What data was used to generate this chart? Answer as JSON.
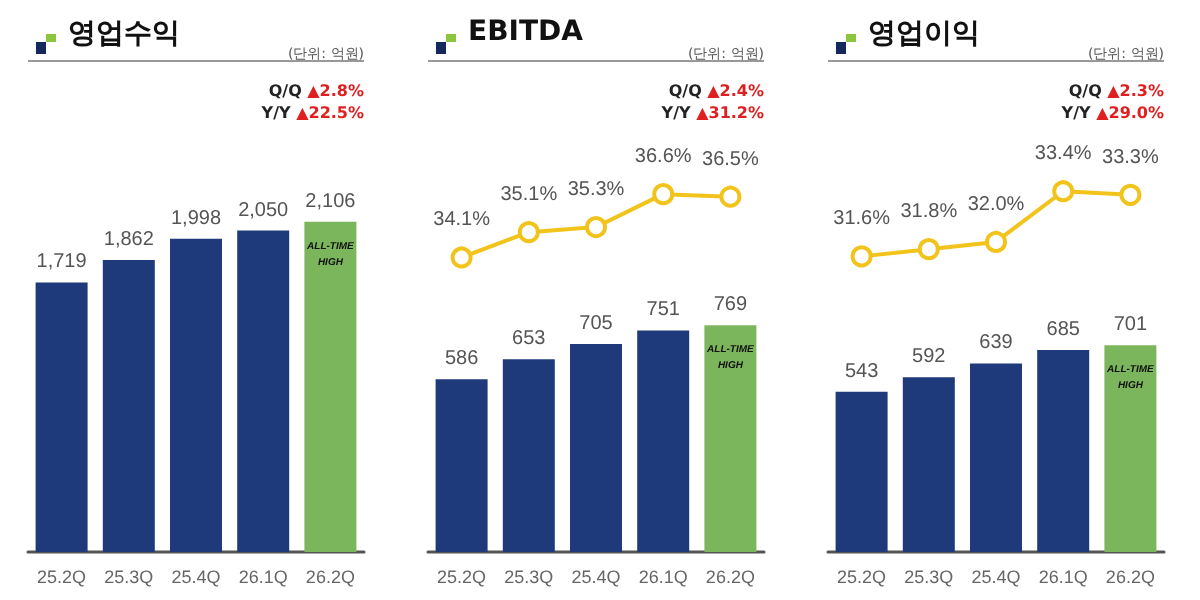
{
  "chart_data": [
    {
      "type": "bar",
      "title": "영업수익",
      "categories": [
        "25.2Q",
        "25.3Q",
        "25.4Q",
        "26.1Q",
        "26.2Q"
      ],
      "tick_labels": "x",
      "grid": false,
      "series": [
        {
          "colors": [
            "#1f3a7a",
            "#1f3a7a",
            "#1f3a7a",
            "#1f3a7a",
            "#7cb65c"
          ],
          "values": [
            1719,
            1862,
            1998,
            2050,
            2106
          ],
          "value_labels": [
            "1,719",
            "1,862",
            "1,998",
            "2,050",
            "2,106"
          ]
        }
      ],
      "annotations": [
        "(단위: 억원)",
        "Q/Q ▲2.8%",
        "Y/Y ▲22.5%",
        {
          "text": "ALL-TIME HIGH",
          "x": "26.2Q",
          "y": 2106
        }
      ]
    },
    {
      "type": "line",
      "title": "EBITDA",
      "categories": [
        "25.2Q",
        "25.3Q",
        "25.4Q",
        "26.1Q",
        "26.2Q"
      ],
      "tick_labels": false,
      "grid": false,
      "marker": "circle",
      "series": [
        {
          "color": "#f2c31b",
          "values": [
            34.1,
            35.1,
            35.3,
            36.6,
            36.5
          ],
          "value_labels": [
            "34.1%",
            "35.1%",
            "35.3%",
            "36.6%",
            "36.5%"
          ]
        }
      ],
      "annotations": [
        "(단위: 억원)",
        "Q/Q ▲2.4%",
        "Y/Y ▲31.2%"
      ]
    },
    {
      "type": "bar",
      "categories": [
        "25.2Q",
        "25.3Q",
        "25.4Q",
        "26.1Q",
        "26.2Q"
      ],
      "tick_labels": "x",
      "grid": false,
      "series": [
        {
          "colors": [
            "#1f3a7a",
            "#1f3a7a",
            "#1f3a7a",
            "#1f3a7a",
            "#7cb65c"
          ],
          "values": [
            586,
            653,
            705,
            751,
            769
          ],
          "value_labels": [
            "586",
            "653",
            "705",
            "751",
            "769"
          ]
        }
      ],
      "annotations": [
        {
          "text": "ALL-TIME HIGH",
          "x": "26.2Q",
          "y": 769
        }
      ]
    },
    {
      "type": "line",
      "title": "영업이익",
      "categories": [
        "25.2Q",
        "25.3Q",
        "25.4Q",
        "26.1Q",
        "26.2Q"
      ],
      "tick_labels": false,
      "grid": false,
      "marker": "circle",
      "series": [
        {
          "color": "#f2c31b",
          "values": [
            31.6,
            31.8,
            32.0,
            33.4,
            33.3
          ],
          "value_labels": [
            "31.6%",
            "31.8%",
            "32.0%",
            "33.4%",
            "33.3%"
          ]
        }
      ],
      "annotations": [
        "(단위: 억원)",
        "Q/Q ▲2.3%",
        "Y/Y ▲29.0%"
      ]
    },
    {
      "type": "bar",
      "categories": [
        "25.2Q",
        "25.3Q",
        "25.4Q",
        "26.1Q",
        "26.2Q"
      ],
      "tick_labels": "x",
      "grid": false,
      "series": [
        {
          "colors": [
            "#1f3a7a",
            "#1f3a7a",
            "#1f3a7a",
            "#1f3a7a",
            "#7cb65c"
          ],
          "values": [
            543,
            592,
            639,
            685,
            701
          ],
          "value_labels": [
            "543",
            "592",
            "639",
            "685",
            "701"
          ]
        }
      ],
      "annotations": [
        {
          "text": "ALL-TIME HIGH",
          "x": "26.2Q",
          "y": 701
        }
      ]
    }
  ]
}
